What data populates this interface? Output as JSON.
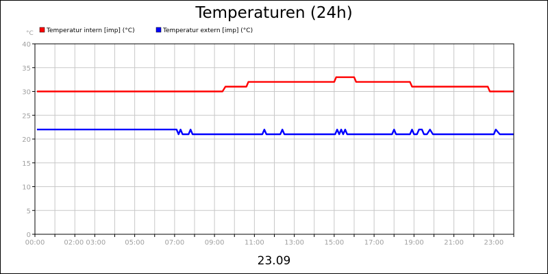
{
  "chart_data": {
    "type": "line",
    "title": "Temperaturen (24h)",
    "y_unit": "°C",
    "date_label": "23.09",
    "ylim": [
      0,
      40
    ],
    "y_ticks": [
      0,
      5,
      10,
      15,
      20,
      25,
      30,
      35,
      40
    ],
    "xlim": [
      0,
      24
    ],
    "x_ticks": [
      {
        "hour": 0,
        "label": "00:00"
      },
      {
        "hour": 2.5,
        "label": "02:00 03:00"
      },
      {
        "hour": 5,
        "label": "05:00"
      },
      {
        "hour": 7,
        "label": "07:00"
      },
      {
        "hour": 9,
        "label": "09:00"
      },
      {
        "hour": 11,
        "label": "11:00"
      },
      {
        "hour": 13,
        "label": "13:00"
      },
      {
        "hour": 15,
        "label": "15:00"
      },
      {
        "hour": 17,
        "label": "17:00"
      },
      {
        "hour": 19,
        "label": "19:00"
      },
      {
        "hour": 21,
        "label": "21:00"
      },
      {
        "hour": 23,
        "label": "23:00"
      }
    ],
    "grid": true,
    "legend": "top-left",
    "series": [
      {
        "name": "Temperatur intern [imp] (°C)",
        "color": "#ff0000",
        "points": [
          [
            0.1,
            30
          ],
          [
            9.4,
            30
          ],
          [
            9.55,
            31
          ],
          [
            10.6,
            31
          ],
          [
            10.7,
            32
          ],
          [
            15.0,
            32
          ],
          [
            15.1,
            33
          ],
          [
            16.0,
            33
          ],
          [
            16.1,
            32
          ],
          [
            18.8,
            32
          ],
          [
            18.9,
            31
          ],
          [
            22.7,
            31
          ],
          [
            22.8,
            30
          ],
          [
            24.0,
            30
          ]
        ]
      },
      {
        "name": "Temperatur extern [imp] (°C)",
        "color": "#0000ff",
        "points": [
          [
            0.1,
            22
          ],
          [
            7.1,
            22
          ],
          [
            7.2,
            21
          ],
          [
            7.3,
            22
          ],
          [
            7.4,
            21
          ],
          [
            7.7,
            21
          ],
          [
            7.8,
            22
          ],
          [
            7.9,
            21
          ],
          [
            11.4,
            21
          ],
          [
            11.5,
            22
          ],
          [
            11.6,
            21
          ],
          [
            12.3,
            21
          ],
          [
            12.4,
            22
          ],
          [
            12.5,
            21
          ],
          [
            15.05,
            21
          ],
          [
            15.15,
            22
          ],
          [
            15.25,
            21
          ],
          [
            15.35,
            22
          ],
          [
            15.45,
            21
          ],
          [
            15.55,
            22
          ],
          [
            15.65,
            21
          ],
          [
            17.9,
            21
          ],
          [
            18.0,
            22
          ],
          [
            18.1,
            21
          ],
          [
            18.8,
            21
          ],
          [
            18.9,
            22
          ],
          [
            19.0,
            21
          ],
          [
            19.15,
            21
          ],
          [
            19.25,
            22
          ],
          [
            19.4,
            22
          ],
          [
            19.5,
            21
          ],
          [
            19.65,
            21
          ],
          [
            19.8,
            22
          ],
          [
            19.95,
            21
          ],
          [
            23.0,
            21
          ],
          [
            23.1,
            22
          ],
          [
            23.3,
            21
          ],
          [
            24.0,
            21
          ]
        ]
      }
    ]
  }
}
